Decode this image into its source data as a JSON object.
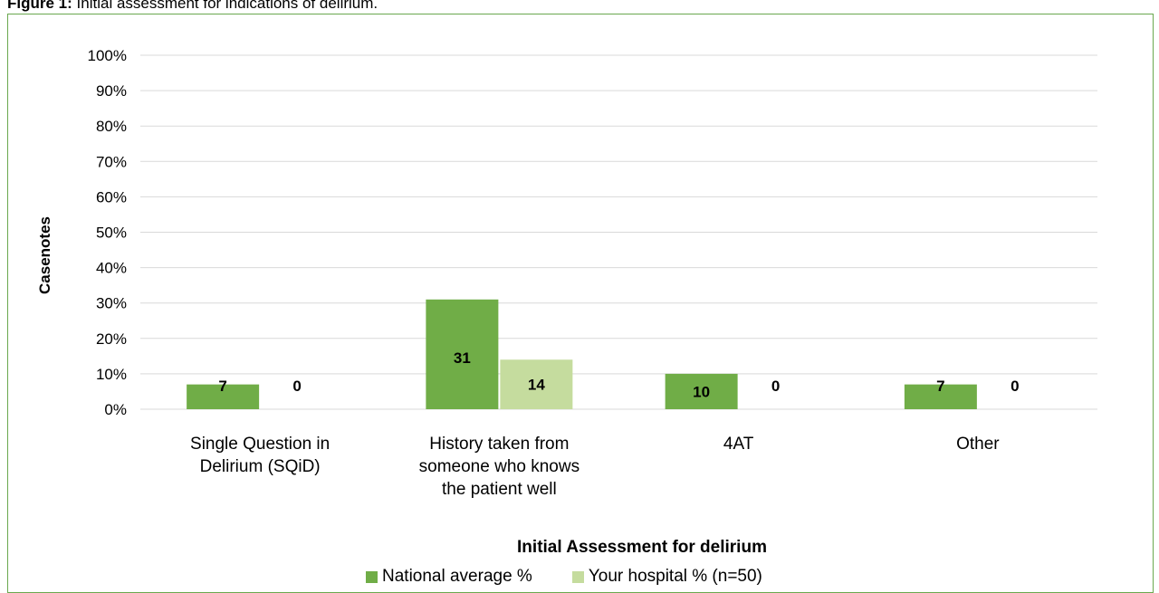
{
  "figure": {
    "label": "Figure 1:",
    "caption": "Initial assessment for indications of delirium."
  },
  "colors": {
    "national": "#70ad47",
    "hospital": "#c5dc9e",
    "grid": "#d9d9d9",
    "frame": "#6aa84f"
  },
  "chart_data": {
    "type": "bar",
    "categories": [
      [
        "Single Question in",
        "Delirium (SQiD)"
      ],
      [
        "History taken from",
        "someone who knows",
        "the patient well"
      ],
      [
        "4AT"
      ],
      [
        "Other"
      ]
    ],
    "series": [
      {
        "name": "National average %",
        "values": [
          7,
          31,
          10,
          7
        ]
      },
      {
        "name": "Your hospital % (n=50)",
        "values": [
          0,
          14,
          0,
          0
        ]
      }
    ],
    "data_labels": [
      [
        "7",
        "31",
        "10",
        "7"
      ],
      [
        "0",
        "14",
        "0",
        "0"
      ]
    ],
    "ylim": [
      0,
      100
    ],
    "yticks": [
      "0%",
      "10%",
      "20%",
      "30%",
      "40%",
      "50%",
      "60%",
      "70%",
      "80%",
      "90%",
      "100%"
    ],
    "xlabel": "Initial Assessment for delirium",
    "ylabel": "Casenotes",
    "grid": true,
    "legend_position": "bottom"
  }
}
